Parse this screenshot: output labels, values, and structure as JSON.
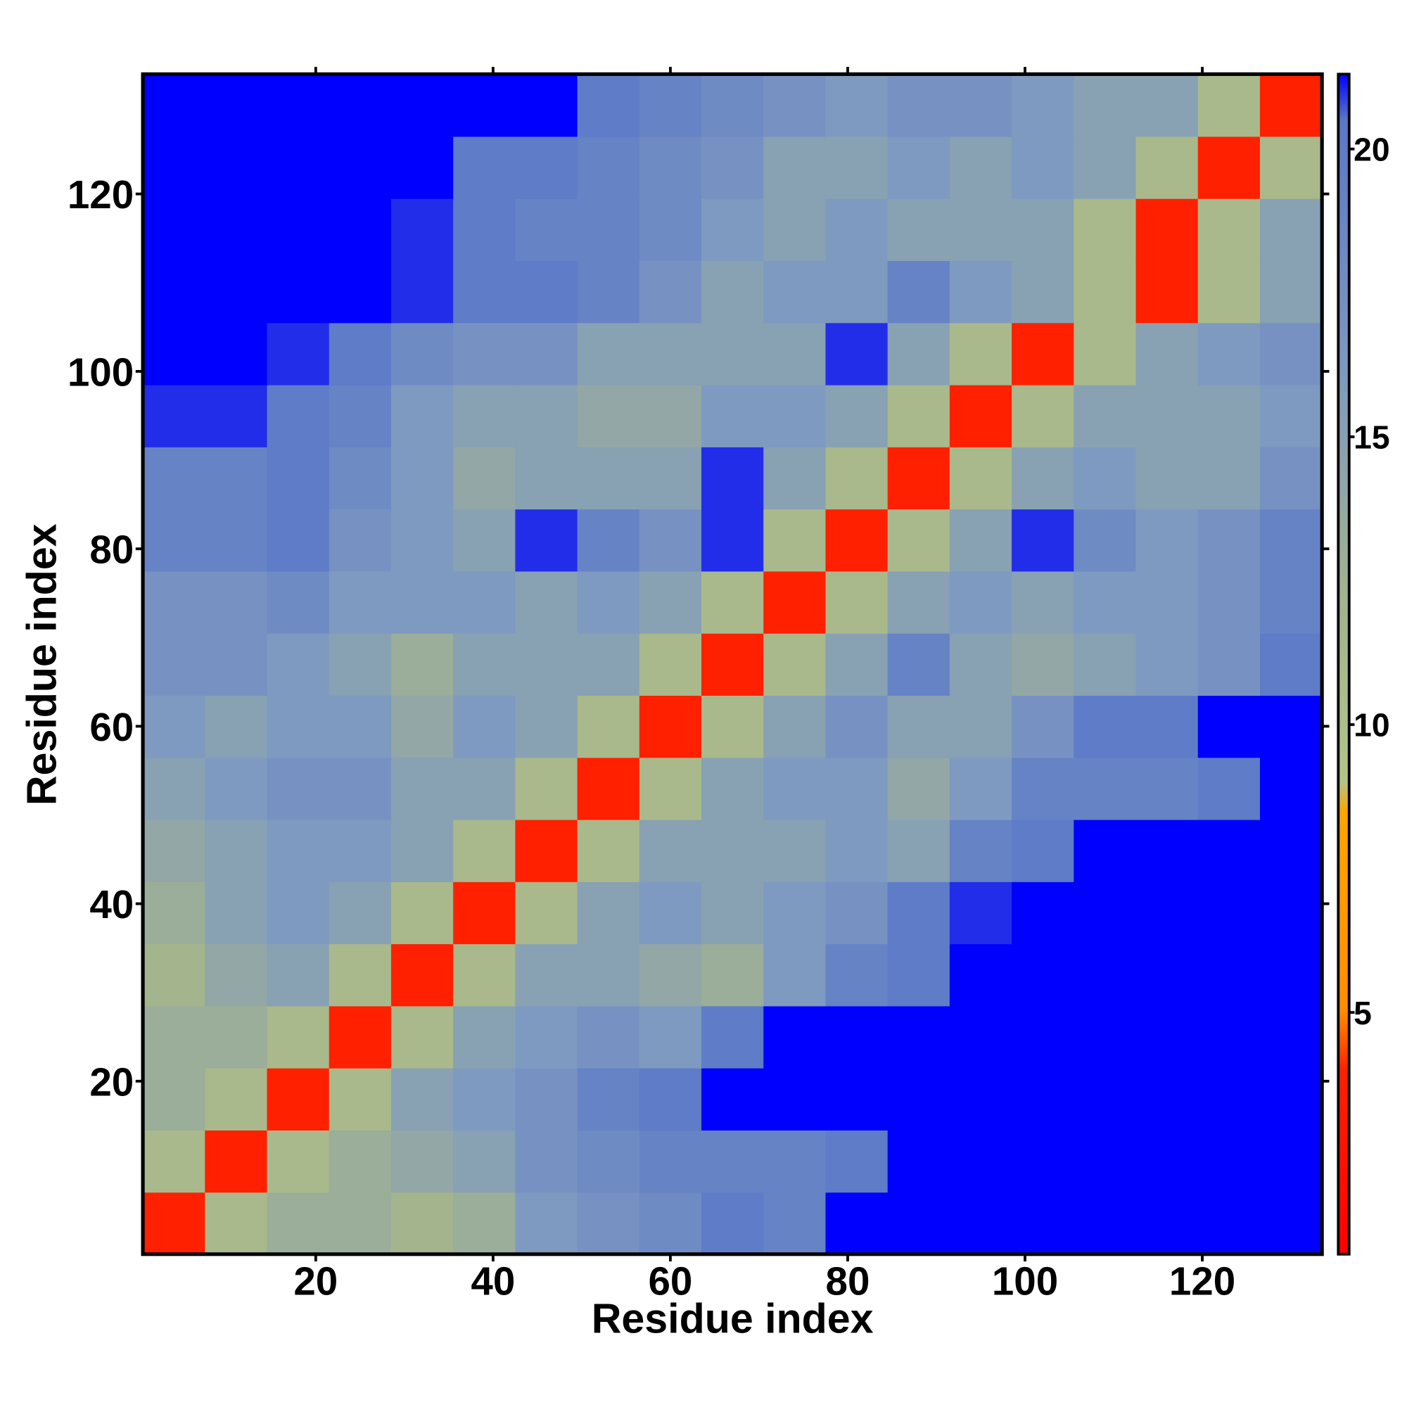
{
  "chart_data": {
    "type": "heatmap",
    "xlabel": "Residue index",
    "ylabel": "Residue index",
    "x": [
      4,
      11,
      18,
      25,
      32,
      39,
      46,
      53,
      60,
      67,
      74,
      81,
      88,
      95,
      102,
      109,
      116,
      123,
      130
    ],
    "y": [
      4,
      11,
      18,
      25,
      32,
      39,
      46,
      53,
      60,
      67,
      74,
      81,
      88,
      95,
      102,
      109,
      116,
      123,
      130
    ],
    "values": [
      [
        4,
        11,
        13,
        13,
        12,
        13,
        16,
        17,
        18,
        20,
        19,
        21.5,
        21.5,
        21.5,
        21.5,
        21.5,
        21.5,
        21.5,
        21.5
      ],
      [
        11,
        4,
        11,
        13,
        14,
        15,
        17,
        18,
        19,
        19,
        19,
        20,
        21.5,
        21.5,
        21.5,
        21.5,
        21.5,
        21.5,
        21.5
      ],
      [
        13,
        11,
        4,
        11,
        15,
        16,
        17,
        19,
        20,
        21.5,
        21.5,
        21.5,
        21.5,
        21.5,
        21.5,
        21.5,
        21.5,
        21.5,
        21.5
      ],
      [
        13,
        13,
        11,
        4,
        11,
        15,
        16,
        17,
        16,
        20,
        21.5,
        21.5,
        21.5,
        21.5,
        21.5,
        21.5,
        21.5,
        21.5,
        21.5
      ],
      [
        12,
        14,
        15,
        11,
        4,
        11,
        15,
        15,
        14,
        13,
        16,
        19,
        20,
        21.5,
        21.5,
        21.5,
        21.5,
        21.5,
        21.5
      ],
      [
        13,
        15,
        16,
        15,
        11,
        4,
        11,
        15,
        16,
        15,
        16,
        17,
        20,
        21,
        21.5,
        21.5,
        21.5,
        21.5,
        21.5
      ],
      [
        14,
        15,
        16,
        16,
        15,
        11,
        4,
        11,
        15,
        15,
        15,
        16,
        15,
        19,
        20,
        21.5,
        21.5,
        21.5,
        21.5
      ],
      [
        15,
        16,
        17,
        17,
        15,
        15,
        11,
        4,
        11,
        15,
        16,
        16,
        14,
        16,
        19,
        19,
        19,
        20,
        21.5
      ],
      [
        16,
        15,
        16,
        16,
        14,
        16,
        15,
        11,
        4,
        11,
        15,
        17,
        15,
        15,
        17,
        20,
        20,
        21.5,
        21.5
      ],
      [
        17,
        17,
        16,
        15,
        13,
        15,
        15,
        15,
        11,
        4,
        11,
        15,
        19,
        15,
        14,
        15,
        16,
        17,
        20
      ],
      [
        17,
        17,
        18,
        16,
        16,
        16,
        15,
        16,
        15,
        11,
        4,
        11,
        15,
        16,
        15,
        16,
        16,
        17,
        19
      ],
      [
        19,
        19,
        20,
        17,
        16,
        15,
        21,
        19,
        17,
        21,
        11,
        4,
        11,
        15,
        21,
        18,
        16,
        17,
        19
      ],
      [
        19,
        19,
        20,
        18,
        16,
        14,
        15,
        15,
        15,
        21,
        15,
        11,
        4,
        11,
        15,
        16,
        15,
        15,
        17
      ],
      [
        21,
        21,
        20,
        19,
        16,
        15,
        15,
        14,
        14,
        16,
        16,
        15,
        11,
        4,
        11,
        15,
        15,
        15,
        16
      ],
      [
        21.5,
        21.5,
        21,
        20,
        18,
        17,
        17,
        15,
        15,
        15,
        15,
        21,
        15,
        11,
        4,
        11,
        15,
        16,
        17
      ],
      [
        21.5,
        21.5,
        21.5,
        21.5,
        21,
        20,
        20,
        19,
        17,
        15,
        16,
        16,
        19,
        16,
        15,
        11,
        4,
        11,
        15
      ],
      [
        21.5,
        21.5,
        21.5,
        21.5,
        21,
        20,
        19,
        19,
        18,
        16,
        15,
        16,
        15,
        15,
        15,
        11,
        4,
        11,
        15
      ],
      [
        21.5,
        21.5,
        21.5,
        21.5,
        21.5,
        20,
        20,
        19,
        18,
        17,
        15,
        15,
        16,
        15,
        16,
        15,
        11,
        4,
        11
      ],
      [
        21.5,
        21.5,
        21.5,
        21.5,
        21.5,
        21.5,
        21.5,
        20,
        19,
        18,
        17,
        16,
        17,
        17,
        16,
        15,
        15,
        11,
        4
      ]
    ],
    "xlim": [
      0.5,
      133.5
    ],
    "ylim": [
      0.5,
      133.5
    ],
    "xticks": [
      20,
      40,
      60,
      80,
      100,
      120
    ],
    "yticks": [
      20,
      40,
      60,
      80,
      100,
      120
    ],
    "clim": [
      0.8,
      21.3
    ],
    "cticks": [
      5,
      10,
      15,
      20
    ],
    "colorscale": [
      [
        0.8,
        "#ff0000"
      ],
      [
        4,
        "#ff2000"
      ],
      [
        5,
        "#ff8c00"
      ],
      [
        8.5,
        "#ffa500"
      ],
      [
        9,
        "#b4c488"
      ],
      [
        12,
        "#a4b48c"
      ],
      [
        16,
        "#7f9ac0"
      ],
      [
        20.5,
        "#5a78c8"
      ],
      [
        21.3,
        "#0000ff"
      ]
    ]
  }
}
